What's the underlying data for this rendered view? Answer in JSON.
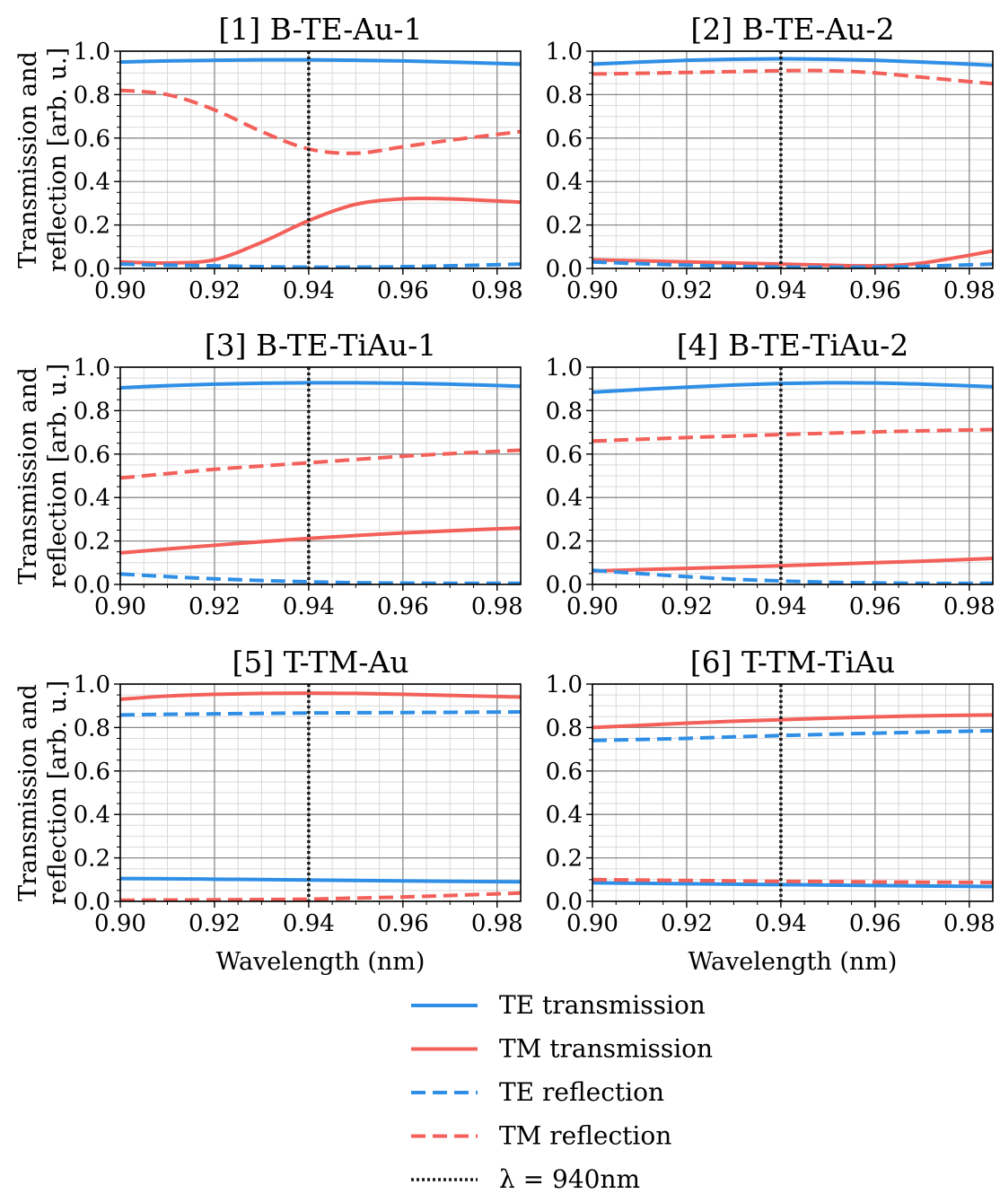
{
  "colors": {
    "te": "#2f8fe6",
    "tm": "#f3605a",
    "marker": "#1a1a1a",
    "grid_major": "#8a8a8a",
    "grid_minor": "#d9d9d9"
  },
  "chart_data": [
    {
      "type": "line",
      "title": "[1] B-TE-Au-1",
      "xlabel": "",
      "ylabel": "Transmission and reflection [arb. u.]",
      "xlim": [
        0.9,
        0.985
      ],
      "ylim": [
        0.0,
        1.0
      ],
      "xticks": [
        "0.90",
        "0.92",
        "0.94",
        "0.96",
        "0.98"
      ],
      "yticks": [
        "0.0",
        "0.2",
        "0.4",
        "0.6",
        "0.8",
        "1.0"
      ],
      "grid": true,
      "x": [
        0.9,
        0.91,
        0.92,
        0.93,
        0.94,
        0.95,
        0.96,
        0.97,
        0.985
      ],
      "series": [
        {
          "name": "TE transmission",
          "values": [
            0.95,
            0.955,
            0.958,
            0.96,
            0.96,
            0.958,
            0.955,
            0.95,
            0.94
          ]
        },
        {
          "name": "TM transmission",
          "values": [
            0.03,
            0.025,
            0.04,
            0.12,
            0.22,
            0.295,
            0.32,
            0.32,
            0.305
          ]
        },
        {
          "name": "TE reflection",
          "values": [
            0.02,
            0.015,
            0.012,
            0.008,
            0.006,
            0.006,
            0.008,
            0.012,
            0.02
          ]
        },
        {
          "name": "TM reflection",
          "values": [
            0.82,
            0.8,
            0.73,
            0.63,
            0.55,
            0.53,
            0.56,
            0.59,
            0.63
          ]
        }
      ]
    },
    {
      "type": "line",
      "title": "[2] B-TE-Au-2",
      "xlabel": "",
      "ylabel": "",
      "xlim": [
        0.9,
        0.985
      ],
      "ylim": [
        0.0,
        1.0
      ],
      "xticks": [
        "0.90",
        "0.92",
        "0.94",
        "0.96",
        "0.98"
      ],
      "yticks": [
        "0.0",
        "0.2",
        "0.4",
        "0.6",
        "0.8",
        "1.0"
      ],
      "grid": true,
      "x": [
        0.9,
        0.91,
        0.92,
        0.93,
        0.94,
        0.95,
        0.96,
        0.97,
        0.985
      ],
      "series": [
        {
          "name": "TE transmission",
          "values": [
            0.94,
            0.95,
            0.958,
            0.963,
            0.965,
            0.963,
            0.958,
            0.95,
            0.935
          ]
        },
        {
          "name": "TM transmission",
          "values": [
            0.04,
            0.035,
            0.03,
            0.025,
            0.02,
            0.015,
            0.012,
            0.025,
            0.08
          ]
        },
        {
          "name": "TE reflection",
          "values": [
            0.03,
            0.022,
            0.015,
            0.01,
            0.006,
            0.005,
            0.006,
            0.01,
            0.02
          ]
        },
        {
          "name": "TM reflection",
          "values": [
            0.895,
            0.898,
            0.902,
            0.906,
            0.91,
            0.91,
            0.9,
            0.88,
            0.85
          ]
        }
      ]
    },
    {
      "type": "line",
      "title": "[3] B-TE-TiAu-1",
      "xlabel": "",
      "ylabel": "Transmission and reflection [arb. u.]",
      "xlim": [
        0.9,
        0.985
      ],
      "ylim": [
        0.0,
        1.0
      ],
      "xticks": [
        "0.90",
        "0.92",
        "0.94",
        "0.96",
        "0.98"
      ],
      "yticks": [
        "0.0",
        "0.2",
        "0.4",
        "0.6",
        "0.8",
        "1.0"
      ],
      "grid": true,
      "x": [
        0.9,
        0.91,
        0.92,
        0.93,
        0.94,
        0.95,
        0.96,
        0.97,
        0.985
      ],
      "series": [
        {
          "name": "TE transmission",
          "values": [
            0.905,
            0.915,
            0.922,
            0.926,
            0.928,
            0.928,
            0.926,
            0.922,
            0.912
          ]
        },
        {
          "name": "TM transmission",
          "values": [
            0.145,
            0.163,
            0.18,
            0.197,
            0.212,
            0.225,
            0.237,
            0.247,
            0.26
          ]
        },
        {
          "name": "TE reflection",
          "values": [
            0.048,
            0.036,
            0.026,
            0.018,
            0.012,
            0.008,
            0.006,
            0.005,
            0.005
          ]
        },
        {
          "name": "TM reflection",
          "values": [
            0.49,
            0.51,
            0.53,
            0.545,
            0.56,
            0.575,
            0.59,
            0.602,
            0.618
          ]
        }
      ]
    },
    {
      "type": "line",
      "title": "[4] B-TE-TiAu-2",
      "xlabel": "",
      "ylabel": "",
      "xlim": [
        0.9,
        0.985
      ],
      "ylim": [
        0.0,
        1.0
      ],
      "xticks": [
        "0.90",
        "0.92",
        "0.94",
        "0.96",
        "0.98"
      ],
      "yticks": [
        "0.0",
        "0.2",
        "0.4",
        "0.6",
        "0.8",
        "1.0"
      ],
      "grid": true,
      "x": [
        0.9,
        0.91,
        0.92,
        0.93,
        0.94,
        0.95,
        0.96,
        0.97,
        0.985
      ],
      "series": [
        {
          "name": "TE transmission",
          "values": [
            0.885,
            0.897,
            0.908,
            0.918,
            0.925,
            0.928,
            0.927,
            0.922,
            0.91
          ]
        },
        {
          "name": "TM transmission",
          "values": [
            0.062,
            0.068,
            0.074,
            0.08,
            0.086,
            0.093,
            0.1,
            0.107,
            0.12
          ]
        },
        {
          "name": "TE reflection",
          "values": [
            0.065,
            0.05,
            0.036,
            0.024,
            0.016,
            0.01,
            0.007,
            0.005,
            0.005
          ]
        },
        {
          "name": "TM reflection",
          "values": [
            0.66,
            0.668,
            0.676,
            0.683,
            0.69,
            0.696,
            0.702,
            0.707,
            0.713
          ]
        }
      ]
    },
    {
      "type": "line",
      "title": "[5] T-TM-Au",
      "xlabel": "Wavelength (nm)",
      "ylabel": "Transmission and reflection [arb. u.]",
      "xlim": [
        0.9,
        0.985
      ],
      "ylim": [
        0.0,
        1.0
      ],
      "xticks": [
        "0.90",
        "0.92",
        "0.94",
        "0.96",
        "0.98"
      ],
      "yticks": [
        "0.0",
        "0.2",
        "0.4",
        "0.6",
        "0.8",
        "1.0"
      ],
      "grid": true,
      "x": [
        0.9,
        0.91,
        0.92,
        0.93,
        0.94,
        0.95,
        0.96,
        0.97,
        0.985
      ],
      "series": [
        {
          "name": "TE transmission",
          "values": [
            0.105,
            0.104,
            0.102,
            0.1,
            0.098,
            0.096,
            0.094,
            0.092,
            0.09
          ]
        },
        {
          "name": "TM transmission",
          "values": [
            0.93,
            0.945,
            0.953,
            0.957,
            0.958,
            0.957,
            0.953,
            0.948,
            0.94
          ]
        },
        {
          "name": "TE reflection",
          "values": [
            0.858,
            0.861,
            0.863,
            0.865,
            0.867,
            0.868,
            0.869,
            0.87,
            0.872
          ]
        },
        {
          "name": "TM reflection",
          "values": [
            0.005,
            0.006,
            0.007,
            0.008,
            0.01,
            0.015,
            0.02,
            0.027,
            0.038
          ]
        }
      ]
    },
    {
      "type": "line",
      "title": "[6] T-TM-TiAu",
      "xlabel": "Wavelength (nm)",
      "ylabel": "",
      "xlim": [
        0.9,
        0.985
      ],
      "ylim": [
        0.0,
        1.0
      ],
      "xticks": [
        "0.90",
        "0.92",
        "0.94",
        "0.96",
        "0.98"
      ],
      "yticks": [
        "0.0",
        "0.2",
        "0.4",
        "0.6",
        "0.8",
        "1.0"
      ],
      "grid": true,
      "x": [
        0.9,
        0.91,
        0.92,
        0.93,
        0.94,
        0.95,
        0.96,
        0.97,
        0.985
      ],
      "series": [
        {
          "name": "TE transmission",
          "values": [
            0.085,
            0.083,
            0.081,
            0.079,
            0.077,
            0.075,
            0.073,
            0.071,
            0.068
          ]
        },
        {
          "name": "TM transmission",
          "values": [
            0.8,
            0.81,
            0.82,
            0.829,
            0.836,
            0.843,
            0.849,
            0.854,
            0.858
          ]
        },
        {
          "name": "TE reflection",
          "values": [
            0.74,
            0.745,
            0.75,
            0.757,
            0.763,
            0.769,
            0.774,
            0.779,
            0.785
          ]
        },
        {
          "name": "TM reflection",
          "values": [
            0.1,
            0.098,
            0.096,
            0.094,
            0.092,
            0.091,
            0.089,
            0.088,
            0.087
          ]
        }
      ]
    }
  ],
  "marker_wavelength": 0.94,
  "legend": {
    "placement": "bottom-center",
    "items": [
      {
        "label": "TE transmission",
        "color": "te",
        "style": "solid"
      },
      {
        "label": "TM transmission",
        "color": "tm",
        "style": "solid"
      },
      {
        "label": "TE reflection",
        "color": "te",
        "style": "dashed"
      },
      {
        "label": "TM reflection",
        "color": "tm",
        "style": "dashed"
      },
      {
        "label": "λ = 940nm",
        "color": "marker",
        "style": "dotted"
      }
    ]
  }
}
